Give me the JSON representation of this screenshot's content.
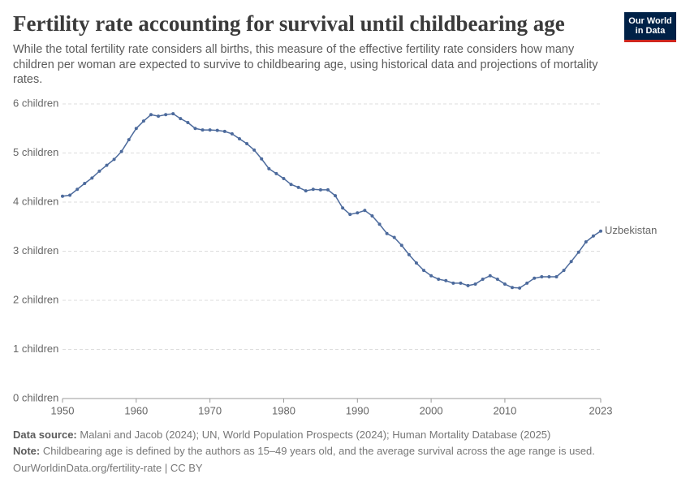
{
  "title": "Fertility rate accounting for survival until childbearing age",
  "subtitle": "While the total fertility rate considers all births, this measure of the effective fertility rate considers how many children per woman are expected to survive to childbearing age, using historical data and projections of mortality rates.",
  "logo": {
    "line1": "Our World",
    "line2": "in Data"
  },
  "footer": {
    "source_label": "Data source:",
    "source_text": "Malani and Jacob (2024); UN, World Population Prospects (2024); Human Mortality Database (2025)",
    "note_label": "Note:",
    "note_text": "Childbearing age is defined by the authors as 15–49 years old, and the average survival across the age range is used.",
    "url": "OurWorldinData.org/fertility-rate | CC BY"
  },
  "chart_data": {
    "type": "line",
    "x": [
      1950,
      1951,
      1952,
      1953,
      1954,
      1955,
      1956,
      1957,
      1958,
      1959,
      1960,
      1961,
      1962,
      1963,
      1964,
      1965,
      1966,
      1967,
      1968,
      1969,
      1970,
      1971,
      1972,
      1973,
      1974,
      1975,
      1976,
      1977,
      1978,
      1979,
      1980,
      1981,
      1982,
      1983,
      1984,
      1985,
      1986,
      1987,
      1988,
      1989,
      1990,
      1991,
      1992,
      1993,
      1994,
      1995,
      1996,
      1997,
      1998,
      1999,
      2000,
      2001,
      2002,
      2003,
      2004,
      2005,
      2006,
      2007,
      2008,
      2009,
      2010,
      2011,
      2012,
      2013,
      2014,
      2015,
      2016,
      2017,
      2018,
      2019,
      2020,
      2021,
      2022,
      2023
    ],
    "series": [
      {
        "name": "Uzbekistan",
        "color": "#4c6a9c",
        "values": [
          4.12,
          4.14,
          4.26,
          4.38,
          4.49,
          4.63,
          4.75,
          4.87,
          5.03,
          5.27,
          5.5,
          5.65,
          5.78,
          5.75,
          5.78,
          5.8,
          5.7,
          5.62,
          5.5,
          5.47,
          5.47,
          5.46,
          5.44,
          5.39,
          5.29,
          5.19,
          5.06,
          4.88,
          4.68,
          4.58,
          4.48,
          4.36,
          4.3,
          4.23,
          4.26,
          4.25,
          4.25,
          4.13,
          3.88,
          3.75,
          3.78,
          3.83,
          3.72,
          3.55,
          3.36,
          3.28,
          3.12,
          2.93,
          2.76,
          2.61,
          2.5,
          2.43,
          2.4,
          2.35,
          2.35,
          2.3,
          2.33,
          2.43,
          2.5,
          2.43,
          2.33,
          2.26,
          2.25,
          2.35,
          2.45,
          2.48,
          2.48,
          2.48,
          2.61,
          2.79,
          2.98,
          3.19,
          3.31,
          3.41
        ]
      }
    ],
    "xlim": [
      1950,
      2023
    ],
    "xticks": [
      1950,
      1960,
      1970,
      1980,
      1990,
      2000,
      2010,
      2023
    ],
    "ylim": [
      0,
      6
    ],
    "yticks": [
      {
        "value": 0,
        "label": "0 children"
      },
      {
        "value": 1,
        "label": "1 children"
      },
      {
        "value": 2,
        "label": "2 children"
      },
      {
        "value": 3,
        "label": "3 children"
      },
      {
        "value": 4,
        "label": "4 children"
      },
      {
        "value": 5,
        "label": "5 children"
      },
      {
        "value": 6,
        "label": "6 children"
      }
    ],
    "grid": true
  }
}
